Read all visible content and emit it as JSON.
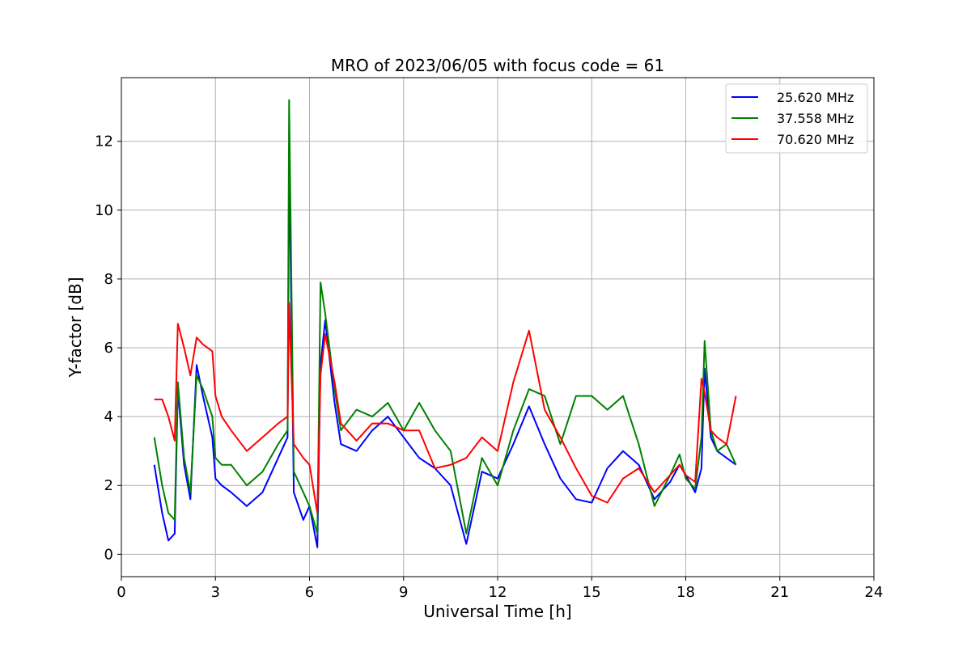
{
  "chart_data": {
    "type": "line",
    "title": "MRO of 2023/06/05 with focus code = 61",
    "xlabel": "Universal Time [h]",
    "ylabel": "Y-factor [dB]",
    "xlim": [
      0,
      24
    ],
    "ylim": [
      -0.65,
      13.85
    ],
    "xticks": [
      0,
      3,
      6,
      9,
      12,
      15,
      18,
      21,
      24
    ],
    "yticks": [
      0,
      2,
      4,
      6,
      8,
      10,
      12
    ],
    "grid": true,
    "legend_position": "top-right",
    "series": [
      {
        "name": "25.620 MHz",
        "color": "#0000ff",
        "x": [
          1.05,
          1.3,
          1.5,
          1.7,
          1.8,
          2.0,
          2.2,
          2.4,
          2.6,
          2.9,
          3.0,
          3.2,
          3.5,
          4.0,
          4.5,
          5.0,
          5.3,
          5.35,
          5.5,
          5.8,
          6.0,
          6.25,
          6.35,
          6.5,
          6.8,
          7.0,
          7.5,
          8.0,
          8.5,
          9.0,
          9.5,
          10.0,
          10.5,
          11.0,
          11.5,
          12.0,
          12.5,
          13.0,
          13.5,
          14.0,
          14.5,
          15.0,
          15.5,
          16.0,
          16.5,
          17.0,
          17.5,
          17.8,
          18.0,
          18.3,
          18.5,
          18.6,
          18.8,
          19.0,
          19.3,
          19.6
        ],
        "y": [
          2.6,
          1.2,
          0.4,
          0.6,
          4.8,
          2.6,
          1.6,
          5.5,
          4.6,
          3.4,
          2.2,
          2.0,
          1.8,
          1.4,
          1.8,
          2.8,
          3.4,
          11.6,
          1.8,
          1.0,
          1.4,
          0.2,
          5.5,
          6.8,
          4.4,
          3.2,
          3.0,
          3.6,
          4.0,
          3.4,
          2.8,
          2.5,
          2.0,
          0.3,
          2.4,
          2.2,
          3.2,
          4.3,
          3.2,
          2.2,
          1.6,
          1.5,
          2.5,
          3.0,
          2.6,
          1.6,
          2.1,
          2.6,
          2.3,
          1.8,
          2.5,
          5.4,
          3.4,
          3.0,
          2.8,
          2.6
        ]
      },
      {
        "name": "37.558 MHz",
        "color": "#008000",
        "x": [
          1.05,
          1.3,
          1.5,
          1.7,
          1.8,
          2.0,
          2.2,
          2.4,
          2.6,
          2.9,
          3.0,
          3.2,
          3.5,
          4.0,
          4.5,
          5.0,
          5.3,
          5.35,
          5.5,
          5.8,
          6.0,
          6.25,
          6.35,
          6.5,
          6.8,
          7.0,
          7.5,
          8.0,
          8.5,
          9.0,
          9.5,
          10.0,
          10.5,
          11.0,
          11.5,
          12.0,
          12.5,
          13.0,
          13.5,
          14.0,
          14.5,
          15.0,
          15.5,
          16.0,
          16.5,
          17.0,
          17.5,
          17.8,
          18.0,
          18.3,
          18.5,
          18.6,
          18.8,
          19.0,
          19.3,
          19.6
        ],
        "y": [
          3.4,
          2.0,
          1.2,
          1.0,
          5.0,
          2.8,
          1.8,
          5.2,
          4.8,
          4.0,
          2.8,
          2.6,
          2.6,
          2.0,
          2.4,
          3.2,
          3.6,
          13.2,
          2.4,
          1.8,
          1.4,
          0.6,
          7.9,
          7.0,
          4.8,
          3.6,
          4.2,
          4.0,
          4.4,
          3.6,
          4.4,
          3.6,
          3.0,
          0.6,
          2.8,
          2.0,
          3.6,
          4.8,
          4.6,
          3.2,
          4.6,
          4.6,
          4.2,
          4.6,
          3.2,
          1.4,
          2.3,
          2.9,
          2.2,
          1.9,
          3.4,
          6.2,
          3.6,
          3.0,
          3.2,
          2.6
        ]
      },
      {
        "name": "70.620 MHz",
        "color": "#ff0000",
        "x": [
          1.05,
          1.3,
          1.5,
          1.7,
          1.8,
          2.0,
          2.2,
          2.4,
          2.6,
          2.9,
          3.0,
          3.2,
          3.5,
          4.0,
          4.5,
          5.0,
          5.3,
          5.35,
          5.5,
          5.8,
          6.0,
          6.25,
          6.35,
          6.5,
          6.8,
          7.0,
          7.5,
          8.0,
          8.5,
          9.0,
          9.5,
          10.0,
          10.5,
          11.0,
          11.5,
          12.0,
          12.5,
          13.0,
          13.5,
          14.0,
          14.5,
          15.0,
          15.5,
          16.0,
          16.5,
          17.0,
          17.5,
          17.8,
          18.0,
          18.3,
          18.5,
          18.6,
          18.8,
          19.0,
          19.3,
          19.6
        ],
        "y": [
          4.5,
          4.5,
          4.0,
          3.3,
          6.7,
          6.0,
          5.2,
          6.3,
          6.1,
          5.9,
          4.6,
          4.0,
          3.6,
          3.0,
          3.4,
          3.8,
          4.0,
          7.3,
          3.2,
          2.8,
          2.6,
          1.2,
          5.2,
          6.4,
          5.0,
          3.8,
          3.3,
          3.8,
          3.8,
          3.6,
          3.6,
          2.5,
          2.6,
          2.8,
          3.4,
          3.0,
          5.0,
          6.5,
          4.2,
          3.4,
          2.5,
          1.7,
          1.5,
          2.2,
          2.5,
          1.8,
          2.3,
          2.6,
          2.3,
          2.1,
          5.1,
          4.7,
          3.6,
          3.4,
          3.2,
          4.6
        ]
      }
    ]
  }
}
